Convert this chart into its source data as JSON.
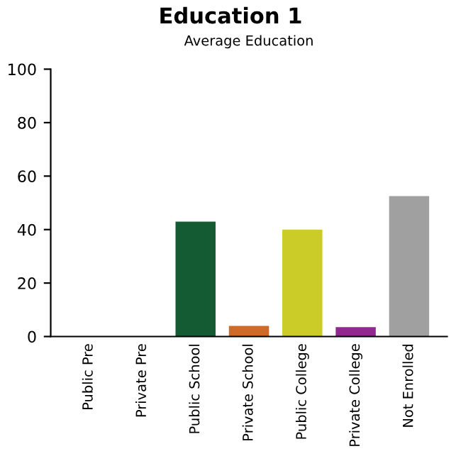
{
  "chart_data": {
    "type": "bar",
    "title": "Education 1",
    "subtitle": "Average Education",
    "categories": [
      "Public Pre",
      "Private Pre",
      "Public School",
      "Private School",
      "Public College",
      "Private College",
      "Not Enrolled"
    ],
    "values": [
      0,
      0,
      43,
      4,
      40,
      3.5,
      52.5
    ],
    "colors": [
      "#20a8c8",
      "#7a1010",
      "#145a32",
      "#d06a28",
      "#cccc28",
      "#902890",
      "#a0a0a0"
    ],
    "ylim": [
      0,
      100
    ],
    "yticks": [
      0,
      20,
      40,
      60,
      80,
      100
    ],
    "grid": false
  }
}
